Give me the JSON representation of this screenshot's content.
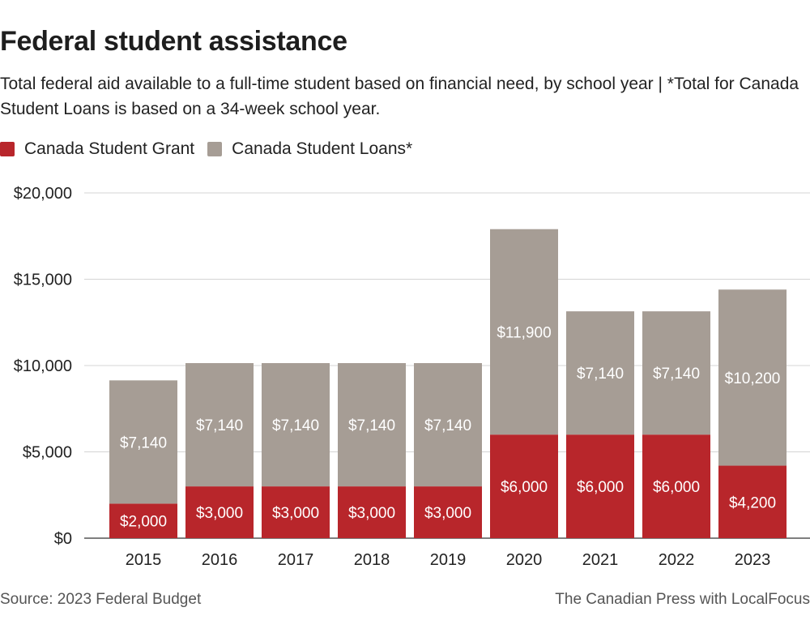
{
  "title": "Federal student assistance",
  "subtitle": "Total federal aid available to a full-time student based on financial need, by school year | *Total for Canada Student Loans is based on a 34-week school year.",
  "legend": {
    "grant_label": "Canada Student Grant",
    "loans_label": "Canada Student Loans*"
  },
  "footer": {
    "source": "Source:  2023 Federal Budget",
    "credit": "The Canadian Press with LocalFocus"
  },
  "colors": {
    "grant": "#b8262b",
    "loans": "#a69d95",
    "grid": "#d4d4d4",
    "axis": "#555555"
  },
  "chart_data": {
    "type": "bar",
    "stacked": true,
    "categories": [
      "2015",
      "2016",
      "2017",
      "2018",
      "2019",
      "2020",
      "2021",
      "2022",
      "2023"
    ],
    "series": [
      {
        "name": "Canada Student Grant",
        "values": [
          2000,
          3000,
          3000,
          3000,
          3000,
          6000,
          6000,
          6000,
          4200
        ],
        "labels": [
          "$2,000",
          "$3,000",
          "$3,000",
          "$3,000",
          "$3,000",
          "$6,000",
          "$6,000",
          "$6,000",
          "$4,200"
        ]
      },
      {
        "name": "Canada Student Loans*",
        "values": [
          7140,
          7140,
          7140,
          7140,
          7140,
          11900,
          7140,
          7140,
          10200
        ],
        "labels": [
          "$7,140",
          "$7,140",
          "$7,140",
          "$7,140",
          "$7,140",
          "$11,900",
          "$7,140",
          "$7,140",
          "$10,200"
        ]
      }
    ],
    "ylim": [
      0,
      20000
    ],
    "yticks": [
      0,
      5000,
      10000,
      15000,
      20000
    ],
    "ytick_labels": [
      "$0",
      "$5,000",
      "$10,000",
      "$15,000",
      "$20,000"
    ],
    "grid": true,
    "legend_position": "top-left"
  }
}
